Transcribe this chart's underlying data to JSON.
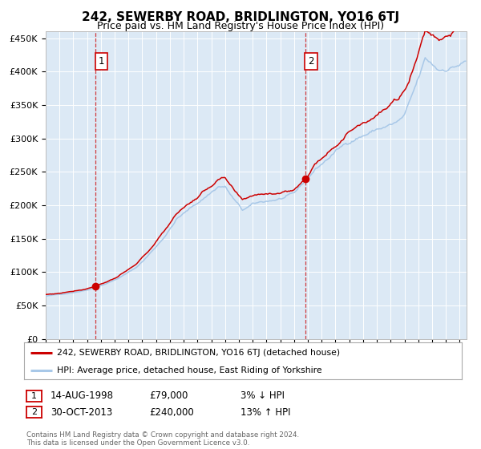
{
  "title": "242, SEWERBY ROAD, BRIDLINGTON, YO16 6TJ",
  "subtitle": "Price paid vs. HM Land Registry's House Price Index (HPI)",
  "title_fontsize": 11,
  "subtitle_fontsize": 9,
  "background_color": "#ffffff",
  "plot_bg_color": "#dce9f5",
  "grid_color": "#ffffff",
  "red_line_color": "#cc0000",
  "blue_line_color": "#a8c8e8",
  "sale1_date_num": 1998.617,
  "sale1_price": 79000,
  "sale1_label": "1",
  "sale2_date_num": 2013.831,
  "sale2_price": 240000,
  "sale2_label": "2",
  "ylim_min": 0,
  "ylim_max": 460000,
  "xlim_min": 1995.0,
  "xlim_max": 2025.5,
  "legend_line1": "242, SEWERBY ROAD, BRIDLINGTON, YO16 6TJ (detached house)",
  "legend_line2": "HPI: Average price, detached house, East Riding of Yorkshire",
  "table_row1": [
    "1",
    "14-AUG-1998",
    "£79,000",
    "3% ↓ HPI"
  ],
  "table_row2": [
    "2",
    "30-OCT-2013",
    "£240,000",
    "13% ↑ HPI"
  ],
  "footer": "Contains HM Land Registry data © Crown copyright and database right 2024.\nThis data is licensed under the Open Government Licence v3.0.",
  "ytick_labels": [
    "£0",
    "£50K",
    "£100K",
    "£150K",
    "£200K",
    "£250K",
    "£300K",
    "£350K",
    "£400K",
    "£450K"
  ],
  "ytick_values": [
    0,
    50000,
    100000,
    150000,
    200000,
    250000,
    300000,
    350000,
    400000,
    450000
  ]
}
